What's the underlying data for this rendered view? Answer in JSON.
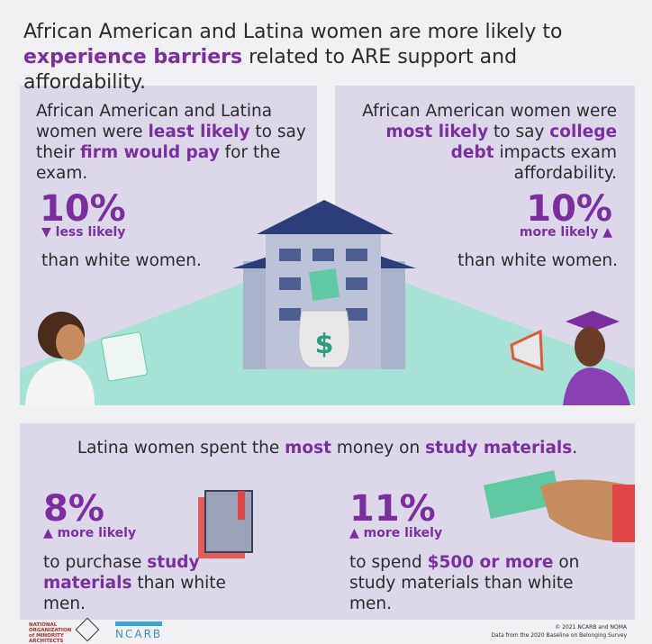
{
  "headline": [
    {
      "text": "African American and Latina women are more likely to "
    },
    {
      "text": "experience barriers",
      "highlight": true
    },
    {
      "text": " related to ARE support and affordability."
    }
  ],
  "left_card": {
    "statement": [
      {
        "text": "African American and Latina women were "
      },
      {
        "text": "least likely",
        "highlight": true
      },
      {
        "text": " to say their "
      },
      {
        "text": "firm would pay",
        "highlight": true
      },
      {
        "text": " for the exam."
      }
    ],
    "stat": "10%",
    "direction": "▼ less likely",
    "comparison": "than white women."
  },
  "right_card": {
    "statement": [
      {
        "text": "African American women were "
      },
      {
        "text": "most likely",
        "highlight": true
      },
      {
        "text": " to say "
      },
      {
        "text": "college debt",
        "highlight": true
      },
      {
        "text": " impacts exam affordability."
      }
    ],
    "stat": "10%",
    "direction": "more likely ▲",
    "comparison": "than white women."
  },
  "bottom_card": {
    "statement": [
      {
        "text": "Latina women spent the "
      },
      {
        "text": "most",
        "highlight": true
      },
      {
        "text": " money on "
      },
      {
        "text": "study materials",
        "highlight": true
      },
      {
        "text": "."
      }
    ],
    "left": {
      "stat": "8%",
      "direction": "▲ more likely",
      "body": [
        {
          "text": "to purchase "
        },
        {
          "text": "study materials",
          "highlight": true
        },
        {
          "text": " than white men."
        }
      ]
    },
    "right": {
      "stat": "11%",
      "direction": "▲ more likely",
      "body": [
        {
          "text": "to spend "
        },
        {
          "text": "$500 or more",
          "highlight": true
        },
        {
          "text": " on study materials than white men."
        }
      ]
    }
  },
  "footer": {
    "noma_logo": "NATIONAL ORGANIZATION of MINORITY ARCHITECTS",
    "ncarb_logo": "NCARB",
    "copyright": "© 2021 NCARB and NOMA",
    "source": "Data from the 2020 Baseline on Belonging Survey"
  }
}
